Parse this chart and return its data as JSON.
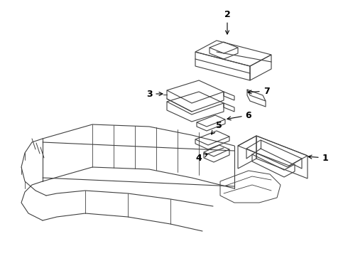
{
  "background_color": "#ffffff",
  "line_color": "#404040",
  "text_color": "#000000",
  "figsize": [
    4.9,
    3.6
  ],
  "dpi": 100,
  "lw": 0.8,
  "anno_fs": 9
}
